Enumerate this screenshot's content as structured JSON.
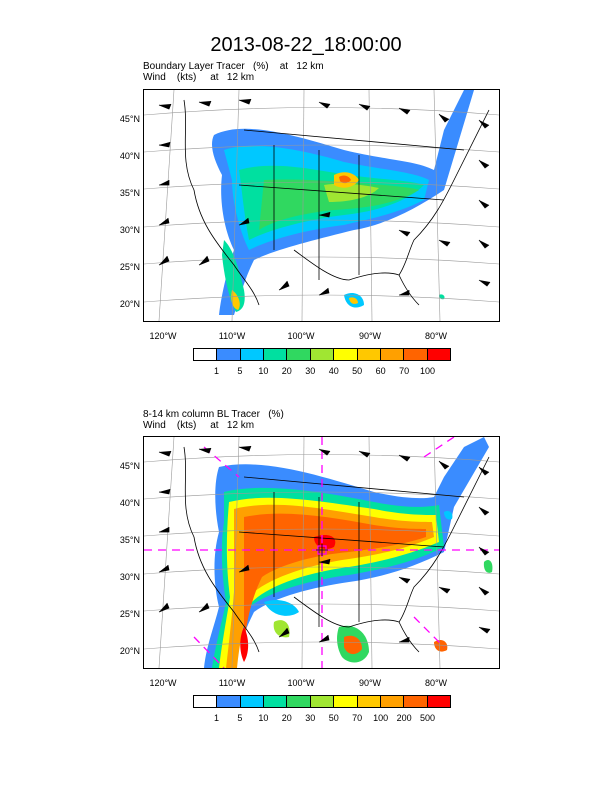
{
  "title": "2013-08-22_18:00:00",
  "panels": [
    {
      "title_line1": "Boundary Layer Tracer   (%)    at   12 km",
      "title_line2": "Wind    (kts)     at   12 km",
      "lat_labels": [
        "45°N",
        "40°N",
        "35°N",
        "30°N",
        "25°N",
        "20°N"
      ],
      "lon_labels": [
        "120°W",
        "110°W",
        "100°W",
        "90°W",
        "80°W"
      ],
      "colorbar_labels": [
        "1",
        "5",
        "10",
        "20",
        "30",
        "40",
        "50",
        "60",
        "70",
        "100"
      ],
      "colorbar_colors": [
        "#ffffff",
        "#3a8cff",
        "#00c8ff",
        "#00e0a0",
        "#30d860",
        "#a0e632",
        "#ffff00",
        "#ffc800",
        "#ffa000",
        "#ff6400",
        "#ff0000"
      ]
    },
    {
      "title_line1": "8-14 km column BL Tracer   (%)",
      "title_line2": "Wind    (kts)     at   12 km",
      "lat_labels": [
        "45°N",
        "40°N",
        "35°N",
        "30°N",
        "25°N",
        "20°N"
      ],
      "lon_labels": [
        "120°W",
        "110°W",
        "100°W",
        "90°W",
        "80°W"
      ],
      "colorbar_labels": [
        "1",
        "5",
        "10",
        "20",
        "30",
        "50",
        "70",
        "100",
        "200",
        "500"
      ],
      "colorbar_colors": [
        "#ffffff",
        "#3a8cff",
        "#00c8ff",
        "#00e0a0",
        "#30d860",
        "#a0e632",
        "#ffff00",
        "#ffc800",
        "#ffa000",
        "#ff6400",
        "#ff0000"
      ]
    }
  ]
}
